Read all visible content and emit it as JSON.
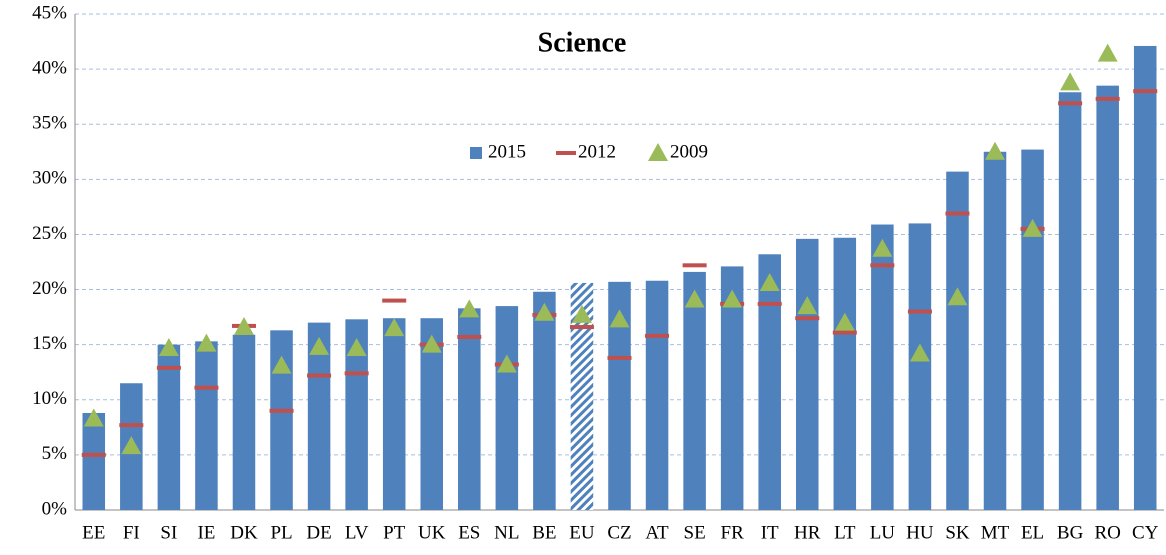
{
  "chart_data": {
    "type": "bar",
    "title": "Science",
    "categories": [
      "EE",
      "FI",
      "SI",
      "IE",
      "DK",
      "PL",
      "DE",
      "LV",
      "PT",
      "UK",
      "ES",
      "NL",
      "BE",
      "EU",
      "CZ",
      "AT",
      "SE",
      "FR",
      "IT",
      "HR",
      "LT",
      "LU",
      "HU",
      "SK",
      "MT",
      "EL",
      "BG",
      "RO",
      "CY"
    ],
    "series": [
      {
        "name": "2015",
        "color": "#4f81bd",
        "mark": "bar",
        "values": [
          8.8,
          11.5,
          15.0,
          15.3,
          15.9,
          16.3,
          17.0,
          17.3,
          17.4,
          17.4,
          18.3,
          18.5,
          19.8,
          20.6,
          20.7,
          20.8,
          21.6,
          22.1,
          23.2,
          24.6,
          24.7,
          25.9,
          26.0,
          30.7,
          32.5,
          32.7,
          37.9,
          38.5,
          42.1
        ]
      },
      {
        "name": "2012",
        "color": "#c0504d",
        "mark": "dash",
        "values": [
          5.0,
          7.7,
          12.9,
          11.1,
          16.7,
          9.0,
          12.2,
          12.4,
          19.0,
          15.0,
          15.7,
          13.2,
          17.7,
          16.6,
          13.8,
          15.8,
          22.2,
          18.7,
          18.7,
          17.4,
          16.1,
          22.2,
          18.0,
          26.9,
          null,
          25.5,
          36.9,
          37.3,
          38.0
        ]
      },
      {
        "name": "2009",
        "color": "#9bbb59",
        "mark": "triangle",
        "values": [
          8.3,
          5.8,
          14.7,
          15.1,
          16.6,
          13.1,
          14.8,
          14.7,
          16.5,
          15.0,
          18.2,
          13.2,
          17.9,
          17.7,
          17.3,
          null,
          19.1,
          19.1,
          20.6,
          18.5,
          17.0,
          23.7,
          14.2,
          19.3,
          32.5,
          25.5,
          38.8,
          41.4,
          null
        ]
      }
    ],
    "hatched_bar": 13,
    "ylim": [
      0,
      45
    ],
    "yticks": [
      {
        "value": 0,
        "label": "0%"
      },
      {
        "value": 5,
        "label": "5%"
      },
      {
        "value": 10,
        "label": "10%"
      },
      {
        "value": 15,
        "label": "15%"
      },
      {
        "value": 20,
        "label": "20%"
      },
      {
        "value": 25,
        "label": "25%"
      },
      {
        "value": 30,
        "label": "30%"
      },
      {
        "value": 35,
        "label": "35%"
      },
      {
        "value": 40,
        "label": "40%"
      },
      {
        "value": 45,
        "label": "45%"
      }
    ],
    "grid": true
  }
}
